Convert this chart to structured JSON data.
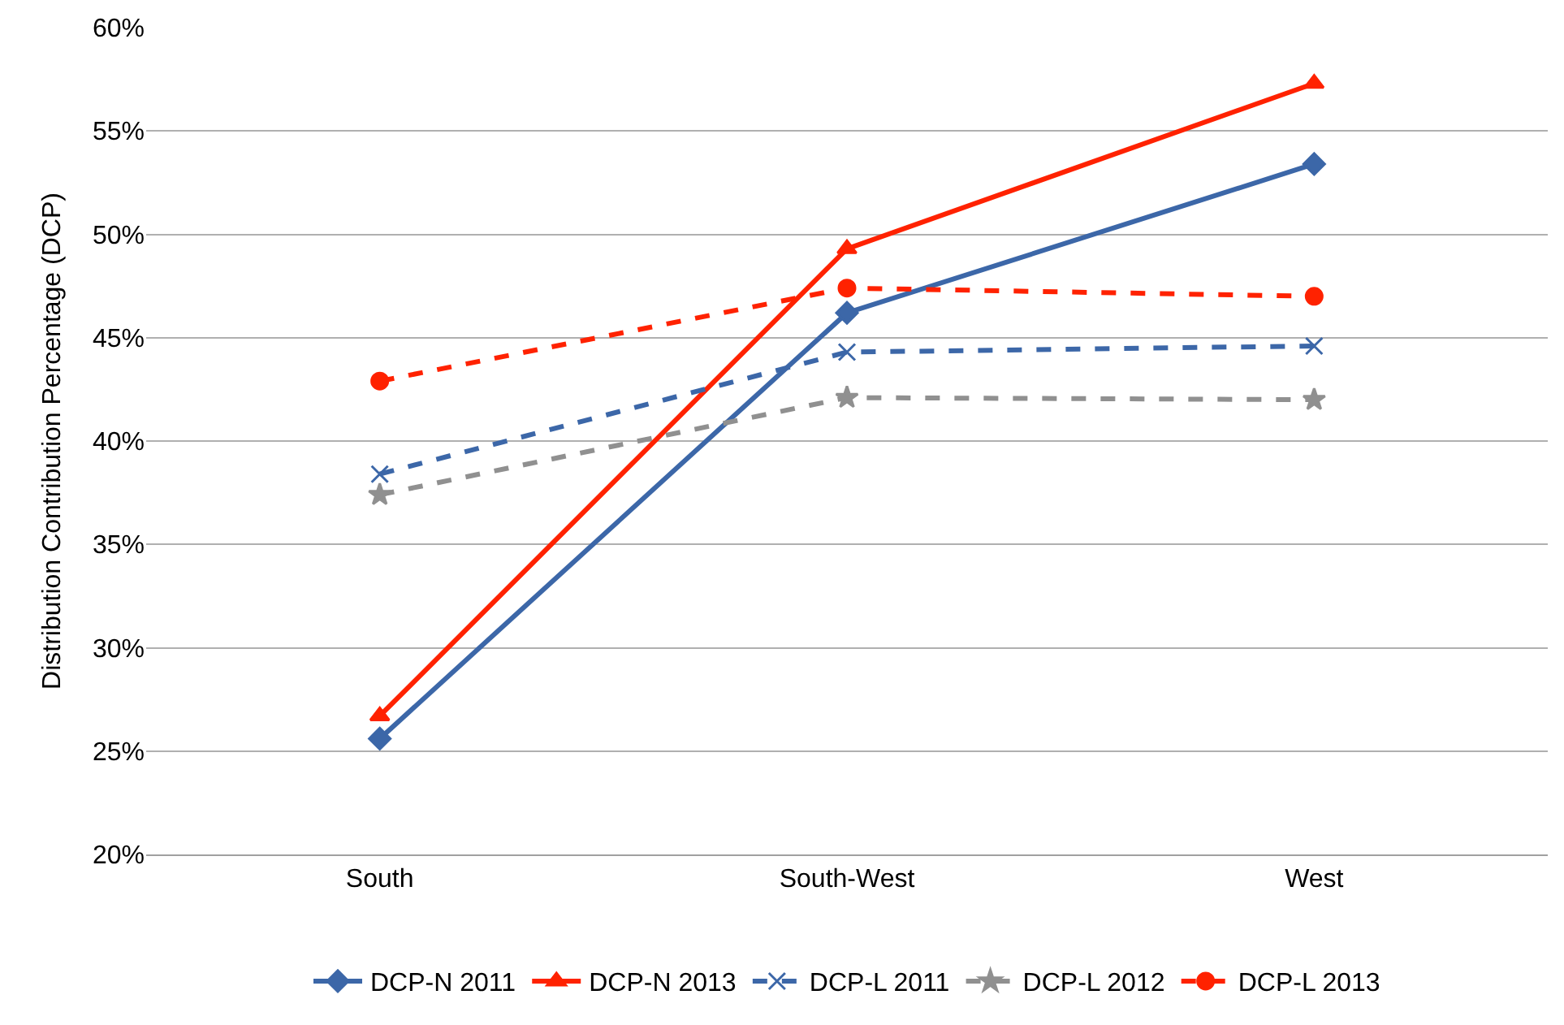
{
  "chart_data": {
    "type": "line",
    "ylabel": "Distribution Contribution Percentage (DCP)",
    "categories": [
      "South",
      "South-West",
      "West"
    ],
    "series": [
      {
        "name": "DCP-N 2011",
        "color": "#3c67a8",
        "values": [
          25.6,
          46.2,
          53.4
        ],
        "marker": "diamond",
        "line_style": "solid"
      },
      {
        "name": "DCP-N 2013",
        "color": "#ff2200",
        "values": [
          26.7,
          49.3,
          57.3
        ],
        "marker": "triangle",
        "line_style": "solid"
      },
      {
        "name": "DCP-L 2011",
        "color": "#3c67a8",
        "values": [
          38.4,
          44.3,
          44.6
        ],
        "marker": "cross",
        "line_style": "dashed"
      },
      {
        "name": "DCP-L 2012",
        "color": "#909090",
        "values": [
          37.4,
          42.1,
          42.0
        ],
        "marker": "star",
        "line_style": "dashed"
      },
      {
        "name": "DCP-L 2013",
        "color": "#ff2200",
        "values": [
          42.9,
          47.4,
          47.0
        ],
        "marker": "circle",
        "line_style": "dashed"
      }
    ],
    "ylim": [
      20,
      60
    ],
    "yticks": [
      {
        "value": 20,
        "label": "20%"
      },
      {
        "value": 25,
        "label": "25%"
      },
      {
        "value": 30,
        "label": "30%"
      },
      {
        "value": 35,
        "label": "35%"
      },
      {
        "value": 40,
        "label": "40%"
      },
      {
        "value": 45,
        "label": "45%"
      },
      {
        "value": 50,
        "label": "50%"
      },
      {
        "value": 55,
        "label": "55%"
      },
      {
        "value": 60,
        "label": "60%"
      }
    ],
    "grid": "y",
    "legend": "bottom"
  }
}
